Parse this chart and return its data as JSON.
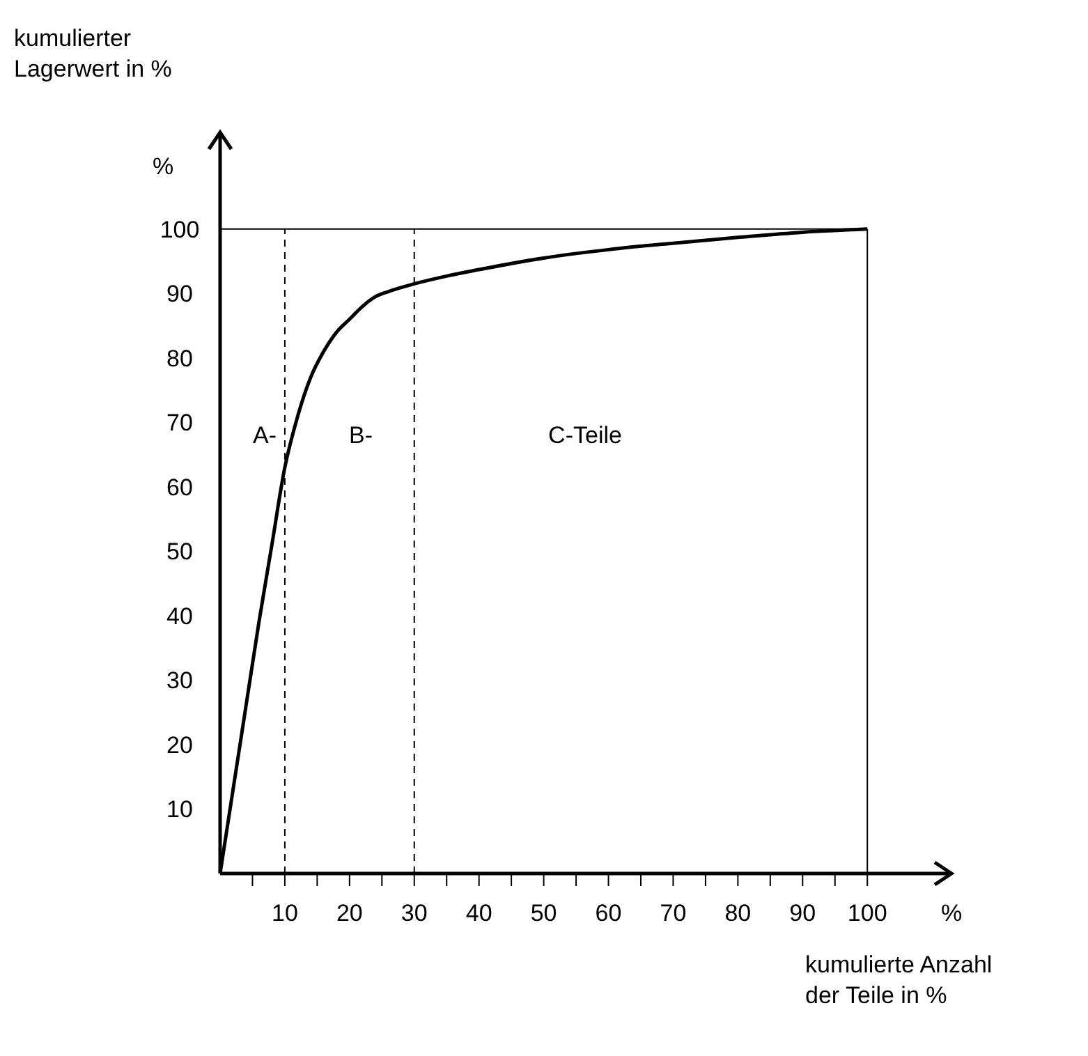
{
  "chart_data": {
    "type": "line",
    "xlabel": "kumulierte Anzahl\nder Teile in %",
    "ylabel": "kumulierter\nLagerwert in %",
    "x": [
      0,
      2,
      4,
      6,
      8,
      10,
      12,
      14,
      16,
      18,
      20,
      22,
      24,
      26,
      30,
      35,
      40,
      50,
      60,
      70,
      80,
      90,
      100
    ],
    "series": [
      {
        "color": "#000000",
        "values": [
          0,
          13,
          26,
          39,
          51,
          63,
          71,
          77,
          81,
          84,
          86,
          88,
          89.5,
          90.3,
          91.5,
          92.7,
          93.7,
          95.5,
          96.8,
          97.8,
          98.7,
          99.5,
          100
        ]
      }
    ],
    "xlim": [
      0,
      113
    ],
    "ylim": [
      0,
      115
    ],
    "xticks": [
      {
        "value": 5,
        "label": null
      },
      10,
      {
        "value": 15,
        "label": null
      },
      20,
      {
        "value": 25,
        "label": null
      },
      30,
      {
        "value": 35,
        "label": null
      },
      40,
      {
        "value": 45,
        "label": null
      },
      50,
      {
        "value": 55,
        "label": null
      },
      60,
      {
        "value": 65,
        "label": null
      },
      70,
      {
        "value": 75,
        "label": null
      },
      80,
      {
        "value": 85,
        "label": null
      },
      90,
      {
        "value": 95,
        "label": null
      },
      100
    ],
    "yticks": [
      10,
      20,
      30,
      40,
      50,
      60,
      70,
      80,
      90,
      100
    ],
    "ref_lines": [
      {
        "axis": "x",
        "value": 10,
        "line_style": "dashed"
      },
      {
        "axis": "x",
        "value": 30,
        "line_style": "dashed"
      },
      {
        "axis": "y",
        "value": 100,
        "line_style": "solid"
      },
      {
        "axis": "x",
        "value": 100,
        "line_style": "solid"
      }
    ],
    "annotations": [
      "A-",
      "B-",
      "C-Teile",
      "%",
      "%"
    ],
    "grid": false,
    "marker": "none",
    "line_style": "solid"
  }
}
